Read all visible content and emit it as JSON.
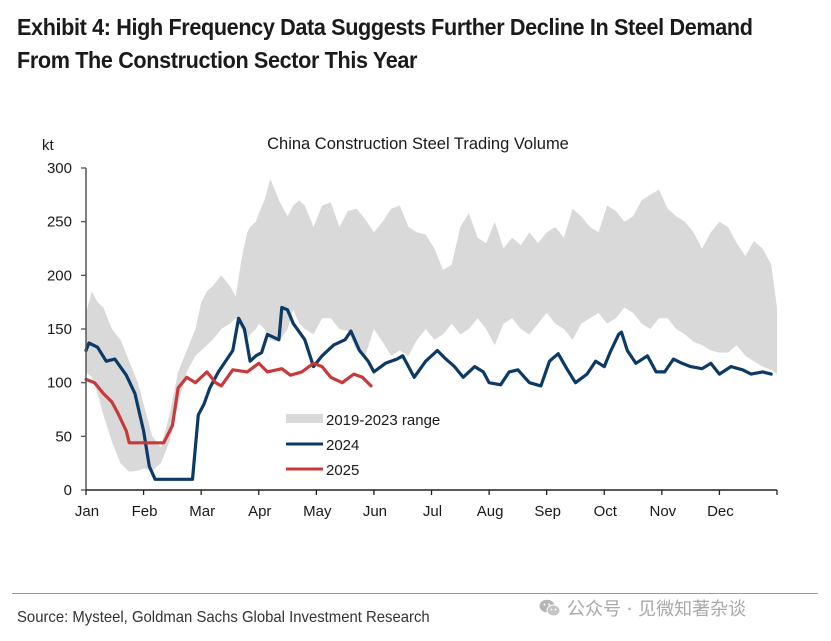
{
  "header": {
    "title": "Exhibit 4: High Frequency Data Suggests Further Decline In Steel Demand From The Construction Sector This Year"
  },
  "footer": {
    "source": "Source: Mysteel, Goldman Sachs Global Investment Research",
    "watermark": "公众号 · 见微知著杂谈",
    "watermark_icon": "wechat-icon"
  },
  "colors": {
    "range_band": "#d9d9d9",
    "series_2024": "#0b3a66",
    "series_2025": "#c83a3a",
    "axis": "#555555"
  },
  "chart_data": {
    "type": "line",
    "title": "China Construction Steel Trading Volume",
    "ylabel": "kt",
    "xlabel": "",
    "ylim": [
      0,
      300
    ],
    "yticks": [
      0,
      50,
      100,
      150,
      200,
      250,
      300
    ],
    "x_unit": "months elapsed since Jan 1",
    "xlim": [
      0,
      12
    ],
    "x_categories": [
      "Jan",
      "Feb",
      "Mar",
      "Apr",
      "May",
      "Jun",
      "Jul",
      "Aug",
      "Sep",
      "Oct",
      "Nov",
      "Dec"
    ],
    "grid": false,
    "legend": {
      "placement": "center-bottom",
      "entries": [
        {
          "label": "2019-2023 range",
          "kind": "band",
          "key": "range"
        },
        {
          "label": "2024",
          "kind": "line",
          "key": "s2024"
        },
        {
          "label": "2025",
          "kind": "line",
          "key": "s2025"
        }
      ]
    },
    "range": {
      "name": "2019-2023 range",
      "x": [
        0.0,
        0.1,
        0.2,
        0.3,
        0.45,
        0.6,
        0.75,
        0.9,
        1.0,
        1.15,
        1.3,
        1.45,
        1.6,
        1.75,
        1.9,
        2.0,
        2.1,
        2.2,
        2.35,
        2.5,
        2.6,
        2.7,
        2.8,
        2.85,
        2.95,
        3.0,
        3.1,
        3.2,
        3.35,
        3.5,
        3.6,
        3.7,
        3.8,
        3.95,
        4.1,
        4.25,
        4.4,
        4.55,
        4.7,
        4.85,
        5.0,
        5.15,
        5.3,
        5.45,
        5.6,
        5.75,
        5.9,
        6.05,
        6.2,
        6.35,
        6.5,
        6.65,
        6.8,
        6.95,
        7.1,
        7.25,
        7.4,
        7.55,
        7.7,
        7.85,
        8.0,
        8.15,
        8.3,
        8.45,
        8.6,
        8.75,
        8.9,
        9.05,
        9.2,
        9.35,
        9.5,
        9.65,
        9.8,
        9.95,
        10.1,
        10.25,
        10.4,
        10.55,
        10.7,
        10.85,
        11.0,
        11.15,
        11.3,
        11.45,
        11.6,
        11.75,
        11.9,
        12.0
      ],
      "upper": [
        165,
        185,
        175,
        170,
        150,
        140,
        120,
        100,
        80,
        50,
        40,
        70,
        110,
        130,
        150,
        175,
        185,
        190,
        200,
        190,
        180,
        215,
        240,
        245,
        250,
        258,
        270,
        290,
        270,
        255,
        265,
        270,
        265,
        245,
        265,
        268,
        245,
        260,
        262,
        252,
        240,
        250,
        262,
        265,
        245,
        240,
        238,
        225,
        205,
        210,
        245,
        258,
        235,
        230,
        250,
        225,
        235,
        228,
        240,
        230,
        240,
        245,
        235,
        262,
        255,
        245,
        240,
        265,
        260,
        250,
        255,
        270,
        275,
        280,
        262,
        255,
        250,
        240,
        225,
        240,
        250,
        245,
        230,
        218,
        232,
        225,
        210,
        170
      ],
      "lower": [
        110,
        105,
        90,
        70,
        45,
        25,
        17,
        18,
        20,
        18,
        25,
        45,
        80,
        110,
        125,
        130,
        135,
        140,
        150,
        155,
        160,
        150,
        140,
        145,
        150,
        155,
        150,
        140,
        138,
        150,
        168,
        155,
        150,
        145,
        160,
        160,
        150,
        148,
        130,
        125,
        150,
        138,
        125,
        130,
        125,
        140,
        150,
        140,
        145,
        155,
        145,
        150,
        160,
        150,
        135,
        155,
        160,
        150,
        145,
        155,
        165,
        155,
        150,
        140,
        155,
        160,
        165,
        155,
        160,
        170,
        165,
        155,
        150,
        160,
        160,
        150,
        145,
        138,
        135,
        130,
        128,
        128,
        135,
        125,
        120,
        115,
        112,
        108
      ]
    },
    "series": [
      {
        "name": "2024",
        "key": "s2024",
        "x": [
          0.0,
          0.05,
          0.2,
          0.35,
          0.5,
          0.7,
          0.85,
          1.0,
          1.1,
          1.2,
          1.5,
          1.85,
          1.95,
          2.05,
          2.15,
          2.3,
          2.55,
          2.65,
          2.75,
          2.85,
          2.95,
          3.05,
          3.15,
          3.35,
          3.4,
          3.5,
          3.6,
          3.8,
          3.95,
          4.1,
          4.3,
          4.5,
          4.6,
          4.75,
          4.9,
          5.0,
          5.2,
          5.4,
          5.5,
          5.7,
          5.9,
          6.1,
          6.25,
          6.4,
          6.55,
          6.75,
          6.9,
          7.0,
          7.2,
          7.35,
          7.5,
          7.7,
          7.9,
          8.05,
          8.2,
          8.35,
          8.5,
          8.7,
          8.85,
          9.0,
          9.1,
          9.25,
          9.3,
          9.4,
          9.55,
          9.75,
          9.9,
          10.05,
          10.2,
          10.35,
          10.5,
          10.7,
          10.85,
          11.0,
          11.2,
          11.4,
          11.55,
          11.75,
          11.9
        ],
        "values": [
          130,
          137,
          133,
          120,
          122,
          107,
          90,
          55,
          22,
          10,
          10,
          10,
          70,
          80,
          95,
          110,
          130,
          160,
          150,
          120,
          125,
          128,
          145,
          140,
          170,
          168,
          155,
          140,
          115,
          125,
          135,
          140,
          148,
          130,
          120,
          110,
          118,
          122,
          125,
          105,
          120,
          130,
          122,
          115,
          105,
          115,
          110,
          100,
          98,
          110,
          112,
          100,
          97,
          120,
          127,
          113,
          100,
          108,
          120,
          115,
          128,
          145,
          147,
          130,
          118,
          125,
          110,
          110,
          122,
          118,
          115,
          113,
          118,
          108,
          115,
          112,
          108,
          110,
          108
        ]
      },
      {
        "name": "2025",
        "key": "s2025",
        "x": [
          0.0,
          0.15,
          0.3,
          0.45,
          0.55,
          0.7,
          0.75,
          1.0,
          1.35,
          1.5,
          1.6,
          1.75,
          1.9,
          2.1,
          2.25,
          2.35,
          2.55,
          2.8,
          3.0,
          3.15,
          3.4,
          3.55,
          3.75,
          3.95,
          4.1,
          4.25,
          4.45,
          4.65,
          4.8,
          4.95
        ],
        "values": [
          103,
          100,
          90,
          82,
          72,
          55,
          44,
          44,
          44,
          60,
          95,
          105,
          100,
          110,
          100,
          97,
          112,
          110,
          118,
          110,
          113,
          107,
          110,
          118,
          115,
          105,
          100,
          108,
          105,
          97
        ]
      }
    ]
  }
}
